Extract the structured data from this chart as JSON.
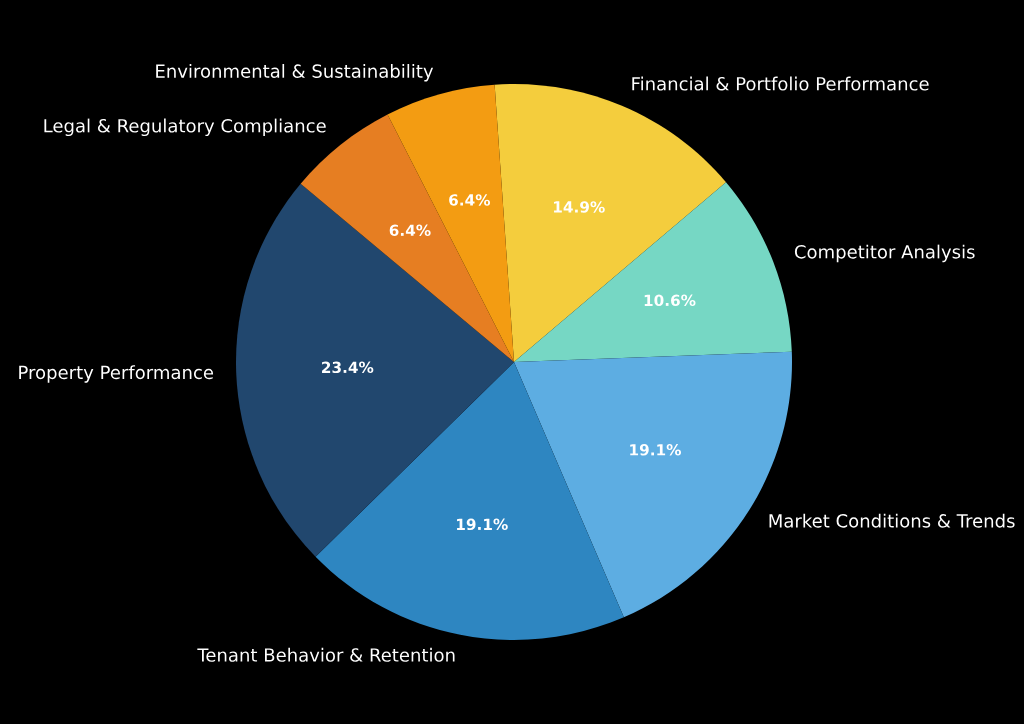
{
  "chart_data": {
    "type": "pie",
    "categories": [
      "Financial & Portfolio Performance",
      "Competitor Analysis",
      "Market Conditions & Trends",
      "Tenant Behavior & Retention",
      "Property Performance",
      "Legal & Regulatory Compliance",
      "Environmental & Sustainability"
    ],
    "values": [
      14.9,
      10.6,
      19.1,
      19.1,
      23.4,
      6.4,
      6.4
    ],
    "value_labels": [
      "14.9%",
      "10.6%",
      "19.1%",
      "19.1%",
      "23.4%",
      "6.4%",
      "6.4%"
    ],
    "colors": [
      "#f4cd3d",
      "#76d7c4",
      "#5dade2",
      "#2e86c1",
      "#21476e",
      "#e67e22",
      "#f39c12"
    ]
  }
}
